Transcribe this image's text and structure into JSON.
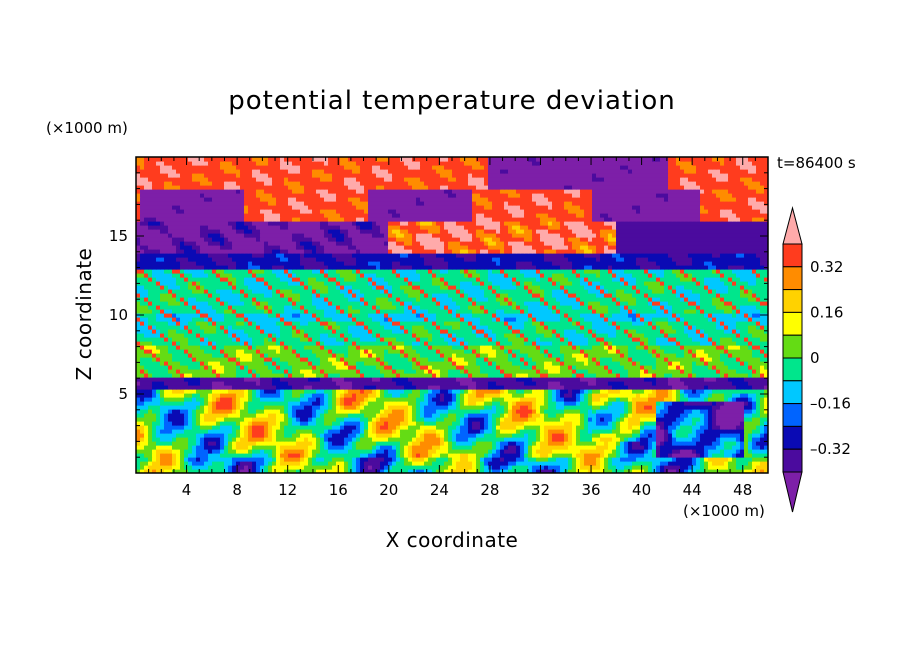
{
  "chart_data": {
    "type": "heatmap",
    "title": "potential temperature deviation",
    "xlabel": "X coordinate",
    "ylabel": "Z coordinate",
    "x_unit": "(×1000 m)",
    "z_unit": "(×1000 m)",
    "time_label": "t=86400 s",
    "xlim": [
      0,
      50
    ],
    "ylim": [
      0,
      20
    ],
    "x_ticks": [
      4,
      8,
      12,
      16,
      20,
      24,
      28,
      32,
      36,
      40,
      44,
      48
    ],
    "y_ticks": [
      5,
      10,
      15
    ],
    "colorbar": {
      "levels": [
        -0.48,
        -0.4,
        -0.32,
        -0.24,
        -0.16,
        -0.08,
        0,
        0.08,
        0.16,
        0.24,
        0.32,
        0.4
      ],
      "labels": [
        "0.32",
        "0.16",
        "0",
        "–0.16",
        "–0.32"
      ],
      "label_values": [
        0.32,
        0.16,
        0,
        -0.16,
        -0.32
      ],
      "colors": [
        "#7d1fa8",
        "#4b0b9e",
        "#0a0ab4",
        "#0064ff",
        "#00c8ff",
        "#00e68c",
        "#64dc14",
        "#ffff00",
        "#ffd200",
        "#ff8c00",
        "#ff3c1e",
        "#ffaaaa"
      ],
      "extend": "both",
      "placement": "right"
    },
    "grid": false
  }
}
